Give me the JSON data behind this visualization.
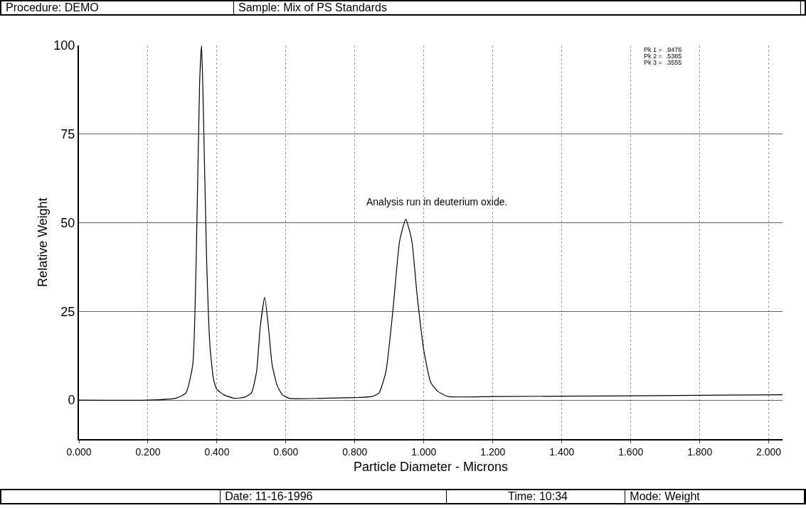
{
  "chart_data": {
    "type": "line",
    "title": "Procedure: DEMO",
    "subtitle": "Sample: Mix of PS Standards",
    "xlabel": "Particle Diameter - Microns",
    "ylabel": "Relative Weight",
    "annotations": [
      "Analysis run in deuterium oxide.",
      "Pk 1 =  .9476",
      "Pk 2 =  .5385",
      "Pk 3 =  .3555",
      "Date: 11-16-1996",
      "Time:  10:34",
      "Mode:  Weight"
    ],
    "x": [
      0.0,
      0.2,
      0.28,
      0.31,
      0.33,
      0.34,
      0.35,
      0.3555,
      0.36,
      0.37,
      0.38,
      0.39,
      0.4,
      0.42,
      0.45,
      0.48,
      0.5,
      0.515,
      0.525,
      0.5385,
      0.55,
      0.56,
      0.575,
      0.59,
      0.61,
      0.7,
      0.8,
      0.85,
      0.87,
      0.89,
      0.91,
      0.93,
      0.9476,
      0.965,
      0.98,
      1.0,
      1.02,
      1.04,
      1.07,
      1.2,
      1.6,
      2.04
    ],
    "series": [
      {
        "color": "#000000",
        "values": [
          0,
          0,
          0.5,
          2,
          10,
          40,
          90,
          100,
          85,
          40,
          15,
          6,
          3,
          1.5,
          0.5,
          0.8,
          2,
          8,
          20,
          29,
          20,
          10,
          4,
          1.5,
          0.5,
          0.5,
          0.7,
          1,
          2,
          8,
          25,
          45,
          51,
          45,
          30,
          14,
          5,
          2.5,
          1,
          1,
          1.2,
          1.5
        ]
      }
    ],
    "xlim": [
      0,
      2.04
    ],
    "xticks": [
      {
        "value": 0,
        "label": "0.000"
      },
      {
        "value": 0.2,
        "label": "0.200"
      },
      {
        "value": 0.4,
        "label": "0.400"
      },
      {
        "value": 0.6,
        "label": "0.600"
      },
      {
        "value": 0.8,
        "label": "0.800"
      },
      {
        "value": 1,
        "label": "1.000"
      },
      {
        "value": 1.2,
        "label": "1.200"
      },
      {
        "value": 1.4,
        "label": "1.400"
      },
      {
        "value": 1.6,
        "label": "1.600"
      },
      {
        "value": 1.8,
        "label": "1.800"
      },
      {
        "value": 2,
        "label": "2.000"
      }
    ],
    "ylim": [
      -11,
      100
    ],
    "yticks": [
      0,
      25,
      50,
      75,
      100
    ],
    "grid": true,
    "legend": false,
    "marker": "none",
    "line_style": "solid"
  }
}
